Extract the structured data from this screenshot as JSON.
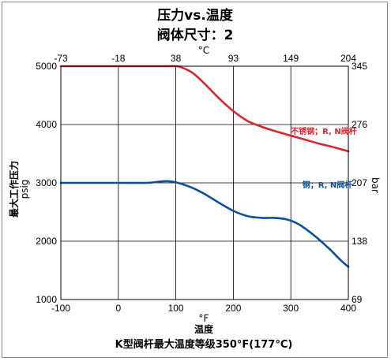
{
  "chart_data": {
    "type": "line",
    "title": "压力vs.温度",
    "subtitle": "阀体尺寸：2",
    "x_bottom": {
      "label_unit": "°F",
      "label": "温度",
      "range": [
        -100,
        400
      ],
      "ticks": [
        "-100",
        "0",
        "100",
        "200",
        "300",
        "400"
      ]
    },
    "x_top": {
      "label_unit": "°C",
      "ticks": [
        "-73",
        "-18",
        "38",
        "93",
        "149",
        "204"
      ]
    },
    "y_left": {
      "label": "最大工作压力",
      "label_unit": "psig",
      "range": [
        1000,
        5000
      ],
      "ticks": [
        "1000",
        "2000",
        "3000",
        "4000",
        "5000"
      ]
    },
    "y_right": {
      "label_unit": "bar",
      "ticks": [
        "69",
        "138",
        "207",
        "276",
        "345"
      ]
    },
    "grid": true,
    "series": [
      {
        "name": "不锈钢；R, N阀杆",
        "color": "#d7262e",
        "x": [
          -100,
          0,
          80,
          100,
          110,
          130,
          150,
          175,
          200,
          225,
          250,
          275,
          300,
          325,
          350,
          375,
          400
        ],
        "y": [
          5000,
          5000,
          5000,
          5000,
          4980,
          4880,
          4700,
          4450,
          4230,
          4060,
          3960,
          3880,
          3810,
          3740,
          3670,
          3610,
          3540
        ]
      },
      {
        "name": "铜；R, N阀杆",
        "color": "#0b4f9c",
        "x": [
          -100,
          0,
          50,
          70,
          85,
          100,
          125,
          150,
          175,
          200,
          225,
          250,
          270,
          290,
          310,
          330,
          350,
          370,
          385,
          400
        ],
        "y": [
          3000,
          3000,
          3000,
          3020,
          3030,
          3010,
          2930,
          2810,
          2660,
          2520,
          2430,
          2400,
          2400,
          2380,
          2310,
          2180,
          2020,
          1840,
          1690,
          1560
        ]
      }
    ],
    "footer": "K型阀杆最大温度等级350°F(177°C)"
  }
}
